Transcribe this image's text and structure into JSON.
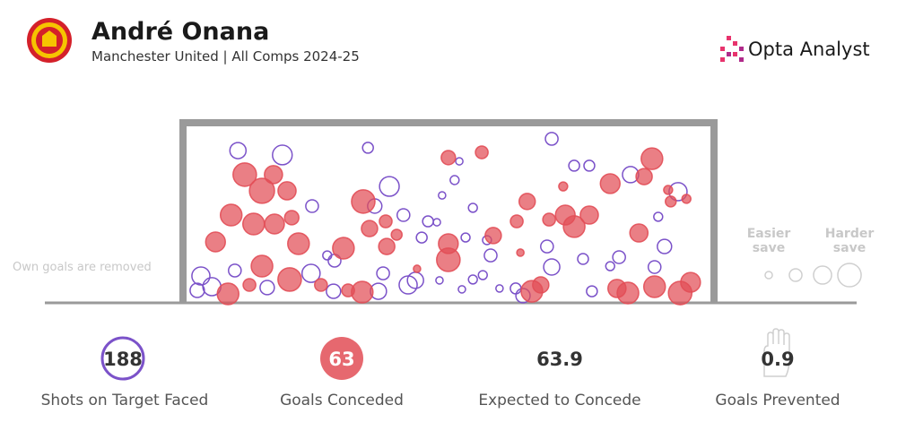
{
  "header": {
    "title": "André Onana",
    "subtitle": "Manchester United | All Comps 2024-25",
    "brand": "Opta Analyst"
  },
  "note": "Own goals are removed",
  "legend": {
    "easier": "Easier save",
    "harder": "Harder save",
    "sizes": [
      0.07,
      0.27,
      0.47,
      0.67
    ]
  },
  "shot_map": {
    "saves": [
      [
        9.5,
        86.7,
        0.4
      ],
      [
        18.0,
        84.2,
        0.53
      ],
      [
        23.7,
        55.1,
        0.27
      ],
      [
        34.4,
        88.3,
        0.2
      ],
      [
        38.5,
        66.3,
        0.53
      ],
      [
        35.7,
        55.1,
        0.33
      ],
      [
        41.2,
        50.0,
        0.27
      ],
      [
        36.4,
        6.6,
        0.4
      ],
      [
        42.1,
        10.2,
        0.47
      ],
      [
        43.5,
        12.8,
        0.4
      ],
      [
        37.3,
        16.8,
        0.27
      ],
      [
        28.0,
        24.0,
        0.27
      ],
      [
        23.5,
        16.8,
        0.47
      ],
      [
        27.8,
        6.6,
        0.33
      ],
      [
        2.4,
        15.3,
        0.47
      ],
      [
        4.5,
        9.2,
        0.47
      ],
      [
        1.7,
        7.1,
        0.33
      ],
      [
        8.9,
        18.4,
        0.27
      ],
      [
        15.1,
        8.7,
        0.33
      ],
      [
        45.9,
        46.4,
        0.2
      ],
      [
        48.6,
        61.2,
        0.07
      ],
      [
        51.0,
        69.9,
        0.13
      ],
      [
        54.5,
        54.1,
        0.13
      ],
      [
        51.9,
        80.6,
        0.07
      ],
      [
        53.1,
        37.2,
        0.13
      ],
      [
        57.9,
        27.0,
        0.27
      ],
      [
        56.4,
        15.8,
        0.13
      ],
      [
        59.6,
        8.2,
        0.07
      ],
      [
        52.4,
        7.7,
        0.07
      ],
      [
        54.5,
        13.3,
        0.13
      ],
      [
        48.1,
        12.8,
        0.07
      ],
      [
        69.6,
        93.4,
        0.27
      ],
      [
        73.9,
        78.1,
        0.2
      ],
      [
        76.8,
        78.1,
        0.2
      ],
      [
        68.7,
        32.1,
        0.27
      ],
      [
        69.6,
        20.4,
        0.4
      ],
      [
        75.6,
        25.0,
        0.2
      ],
      [
        77.3,
        6.6,
        0.2
      ],
      [
        80.8,
        20.9,
        0.13
      ],
      [
        82.5,
        26.0,
        0.27
      ],
      [
        84.7,
        73.0,
        0.4
      ],
      [
        93.8,
        63.3,
        0.47
      ],
      [
        90.0,
        49.0,
        0.13
      ],
      [
        91.2,
        32.1,
        0.33
      ],
      [
        89.3,
        20.4,
        0.27
      ],
      [
        62.7,
        8.2,
        0.2
      ],
      [
        64.1,
        4.1,
        0.33
      ],
      [
        44.7,
        37.2,
        0.2
      ],
      [
        57.2,
        35.7,
        0.13
      ],
      [
        47.6,
        45.9,
        0.07
      ],
      [
        26.6,
        27.0,
        0.13
      ]
    ],
    "goals": [
      [
        10.8,
        73.0,
        0.67
      ],
      [
        14.1,
        63.8,
        0.73
      ],
      [
        16.3,
        73.0,
        0.47
      ],
      [
        18.9,
        63.8,
        0.47
      ],
      [
        8.2,
        50.0,
        0.6
      ],
      [
        12.5,
        44.9,
        0.6
      ],
      [
        16.5,
        44.9,
        0.53
      ],
      [
        19.8,
        48.5,
        0.33
      ],
      [
        5.2,
        34.7,
        0.53
      ],
      [
        21.1,
        33.7,
        0.6
      ],
      [
        14.1,
        20.9,
        0.6
      ],
      [
        19.4,
        13.3,
        0.67
      ],
      [
        7.6,
        5.1,
        0.6
      ],
      [
        11.7,
        10.2,
        0.27
      ],
      [
        33.5,
        57.7,
        0.67
      ],
      [
        34.7,
        42.3,
        0.4
      ],
      [
        37.8,
        46.4,
        0.27
      ],
      [
        29.7,
        31.1,
        0.6
      ],
      [
        38.0,
        32.1,
        0.4
      ],
      [
        39.9,
        38.8,
        0.2
      ],
      [
        33.3,
        6.1,
        0.6
      ],
      [
        25.4,
        10.2,
        0.27
      ],
      [
        30.6,
        7.1,
        0.27
      ],
      [
        49.8,
        82.7,
        0.33
      ],
      [
        56.2,
        85.7,
        0.27
      ],
      [
        64.9,
        57.7,
        0.4
      ],
      [
        62.9,
        46.4,
        0.27
      ],
      [
        58.4,
        38.3,
        0.4
      ],
      [
        49.8,
        33.7,
        0.53
      ],
      [
        49.8,
        24.5,
        0.67
      ],
      [
        63.6,
        28.6,
        0.07
      ],
      [
        72.2,
        50.0,
        0.53
      ],
      [
        73.9,
        43.4,
        0.6
      ],
      [
        76.8,
        50.0,
        0.47
      ],
      [
        69.1,
        47.4,
        0.27
      ],
      [
        71.8,
        66.3,
        0.13
      ],
      [
        80.8,
        67.9,
        0.53
      ],
      [
        88.8,
        82.1,
        0.6
      ],
      [
        87.3,
        71.9,
        0.4
      ],
      [
        86.3,
        39.8,
        0.47
      ],
      [
        89.3,
        9.2,
        0.6
      ],
      [
        84.2,
        5.6,
        0.6
      ],
      [
        82.1,
        8.2,
        0.47
      ],
      [
        94.2,
        5.6,
        0.67
      ],
      [
        96.2,
        11.7,
        0.53
      ],
      [
        92.4,
        57.7,
        0.2
      ],
      [
        95.4,
        59.2,
        0.13
      ],
      [
        65.8,
        6.6,
        0.6
      ],
      [
        67.5,
        10.2,
        0.4
      ],
      [
        91.9,
        64.3,
        0.13
      ],
      [
        43.8,
        19.4,
        0.07
      ]
    ]
  },
  "stats": [
    {
      "value": 188,
      "label": "Shots on Target Faced"
    },
    {
      "value": 63,
      "label": "Goals Conceded"
    },
    {
      "value": 63.9,
      "label": "Expected to Concede"
    },
    {
      "value": 0.9,
      "label": "Goals Prevented"
    }
  ]
}
